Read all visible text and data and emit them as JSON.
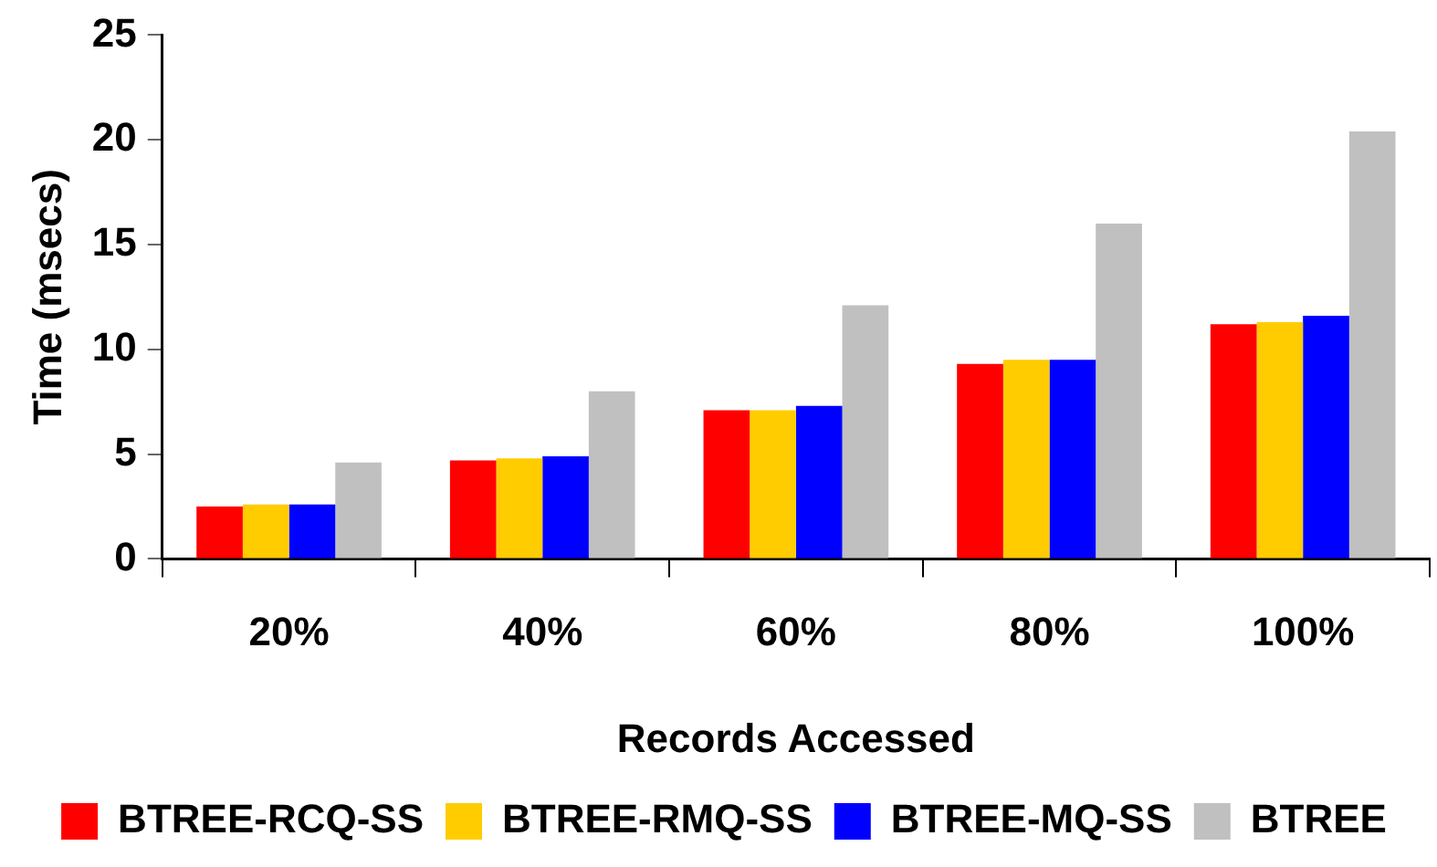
{
  "chart_data": {
    "type": "bar",
    "xlabel": "Records Accessed",
    "ylabel": "Time (msecs)",
    "categories": [
      "20%",
      "40%",
      "60%",
      "80%",
      "100%"
    ],
    "series": [
      {
        "name": "BTREE-RCQ-SS",
        "color": "#ff0000",
        "values": [
          2.5,
          4.7,
          7.1,
          9.3,
          11.2
        ]
      },
      {
        "name": "BTREE-RMQ-SS",
        "color": "#ffcc00",
        "values": [
          2.6,
          4.8,
          7.1,
          9.5,
          11.3
        ]
      },
      {
        "name": "BTREE-MQ-SS",
        "color": "#0000ff",
        "values": [
          2.6,
          4.9,
          7.3,
          9.5,
          11.6
        ]
      },
      {
        "name": "BTREE",
        "color": "#c0c0c0",
        "values": [
          4.6,
          8.0,
          12.1,
          16.0,
          20.4
        ]
      }
    ],
    "ylim": [
      0,
      25
    ],
    "yticks": [
      0,
      5,
      10,
      15,
      20,
      25
    ],
    "grid": false,
    "legend": "bottom"
  }
}
